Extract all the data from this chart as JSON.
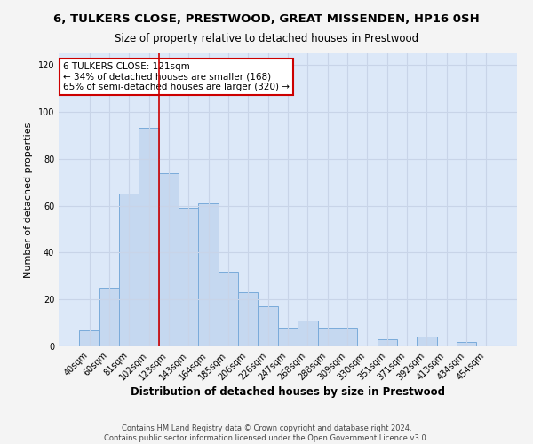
{
  "title": "6, TULKERS CLOSE, PRESTWOOD, GREAT MISSENDEN, HP16 0SH",
  "subtitle": "Size of property relative to detached houses in Prestwood",
  "xlabel": "Distribution of detached houses by size in Prestwood",
  "ylabel": "Number of detached properties",
  "bar_labels": [
    "40sqm",
    "60sqm",
    "81sqm",
    "102sqm",
    "123sqm",
    "143sqm",
    "164sqm",
    "185sqm",
    "206sqm",
    "226sqm",
    "247sqm",
    "268sqm",
    "288sqm",
    "309sqm",
    "330sqm",
    "351sqm",
    "371sqm",
    "392sqm",
    "413sqm",
    "434sqm",
    "454sqm"
  ],
  "bar_heights": [
    7,
    25,
    65,
    93,
    74,
    59,
    61,
    32,
    23,
    17,
    8,
    11,
    8,
    8,
    0,
    3,
    0,
    4,
    0,
    2,
    0
  ],
  "bar_color": "#c5d8f0",
  "bar_edge_color": "#7aabda",
  "vline_x_idx": 4,
  "vline_color": "#cc0000",
  "annotation_lines": [
    "6 TULKERS CLOSE: 121sqm",
    "← 34% of detached houses are smaller (168)",
    "65% of semi-detached houses are larger (320) →"
  ],
  "annotation_box_color": "#ffffff",
  "annotation_box_edge": "#cc0000",
  "ylim": [
    0,
    125
  ],
  "yticks": [
    0,
    20,
    40,
    60,
    80,
    100,
    120
  ],
  "grid_color": "#c8d4e8",
  "bg_color": "#dce8f8",
  "fig_bg_color": "#f4f4f4",
  "footer_line1": "Contains HM Land Registry data © Crown copyright and database right 2024.",
  "footer_line2": "Contains public sector information licensed under the Open Government Licence v3.0."
}
